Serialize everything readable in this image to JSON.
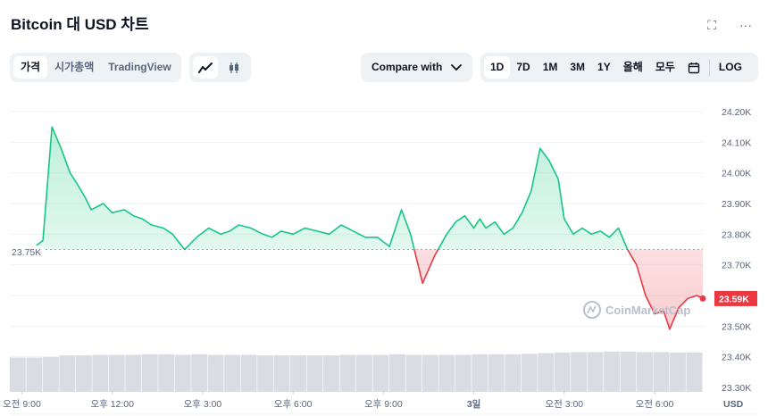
{
  "header": {
    "title": "Bitcoin 대 USD 차트",
    "fullscreen_icon": "fullscreen-icon",
    "more_icon": "more-icon",
    "more_label": "···",
    "fullscreen_label": "⛶"
  },
  "type_tabs": [
    "가격",
    "시가총액",
    "TradingView"
  ],
  "chart_style_icons": [
    "line-chart-icon",
    "candlestick-icon"
  ],
  "compare": {
    "label": "Compare with",
    "chevron": "chevron-down-icon"
  },
  "ranges": [
    "1D",
    "7D",
    "1M",
    "3M",
    "1Y",
    "올해",
    "모두"
  ],
  "calendar_icon": "calendar-icon",
  "log_label": "LOG",
  "watermark": "CoinMarketCap",
  "colors": {
    "up": "#16c784",
    "down": "#ea3943",
    "grid": "#eff2f5",
    "volume": "#d9dde3"
  },
  "chart_data": {
    "type": "area",
    "baseline_label": "23.75K",
    "baseline": 23.75,
    "current_label": "23.59K",
    "current": 23.59,
    "y_unit": "USD",
    "y_ticks": [
      "24.20K",
      "24.10K",
      "24.00K",
      "23.90K",
      "23.80K",
      "23.70K",
      "23.60K",
      "23.50K",
      "23.40K",
      "23.30K"
    ],
    "ylim": [
      23.3,
      24.2
    ],
    "x_tick_labels": [
      "오전 9:00",
      "오후 12:00",
      "오후 3:00",
      "오후 6:00",
      "오후 9:00",
      "3일",
      "오전 3:00",
      "오전 6:00"
    ],
    "x_ticks": [
      0,
      3,
      6,
      9,
      12,
      15,
      18,
      21
    ],
    "xlim": [
      -0.4,
      22.6
    ],
    "series": [
      {
        "x": [
          -0.4,
          0.2,
          0.7,
          1.0,
          1.3,
          1.6,
          1.8,
          2.1,
          2.3,
          2.7,
          3.0,
          3.4,
          3.7,
          4.0,
          4.3,
          4.7,
          5.0,
          5.4,
          5.8,
          6.2,
          6.6,
          6.9,
          7.2,
          7.6,
          8.0,
          8.3,
          8.6,
          9.0,
          9.4,
          9.8,
          10.2,
          10.6,
          11.0,
          11.4,
          11.8,
          12.2,
          12.6,
          12.9,
          13.3,
          13.7,
          14.1,
          14.4,
          14.7,
          15.0,
          15.2,
          15.4,
          15.7,
          16.0,
          16.3,
          16.6,
          16.9,
          17.2,
          17.5,
          17.8,
          18.0,
          18.3,
          18.6,
          18.9,
          19.2,
          19.5,
          19.8,
          20.1,
          20.4,
          20.7,
          21.0,
          21.3,
          21.5,
          21.8,
          22.1,
          22.4,
          22.6
        ],
        "y": [
          23.75,
          23.74,
          23.78,
          24.15,
          24.08,
          24.0,
          23.97,
          23.92,
          23.88,
          23.9,
          23.87,
          23.88,
          23.86,
          23.85,
          23.83,
          23.82,
          23.8,
          23.75,
          23.79,
          23.82,
          23.8,
          23.81,
          23.83,
          23.82,
          23.8,
          23.79,
          23.81,
          23.8,
          23.82,
          23.81,
          23.8,
          23.83,
          23.81,
          23.79,
          23.79,
          23.76,
          23.88,
          23.8,
          23.64,
          23.73,
          23.8,
          23.84,
          23.86,
          23.82,
          23.85,
          23.82,
          23.84,
          23.8,
          23.82,
          23.87,
          23.94,
          24.08,
          24.04,
          23.98,
          23.85,
          23.8,
          23.82,
          23.8,
          23.81,
          23.79,
          23.82,
          23.75,
          23.7,
          23.6,
          23.54,
          23.55,
          23.49,
          23.56,
          23.59,
          23.6,
          23.59
        ]
      }
    ],
    "volume": {
      "relative_heights": [
        0.62,
        0.62,
        0.63,
        0.66,
        0.66,
        0.67,
        0.67,
        0.67,
        0.68,
        0.68,
        0.67,
        0.68,
        0.67,
        0.67,
        0.67,
        0.66,
        0.66,
        0.66,
        0.66,
        0.66,
        0.67,
        0.67,
        0.67,
        0.68,
        0.67,
        0.67,
        0.67,
        0.67,
        0.68,
        0.68,
        0.68,
        0.69,
        0.7,
        0.71,
        0.72,
        0.72,
        0.73,
        0.73,
        0.72,
        0.72,
        0.71,
        0.71
      ]
    },
    "grid": true
  }
}
